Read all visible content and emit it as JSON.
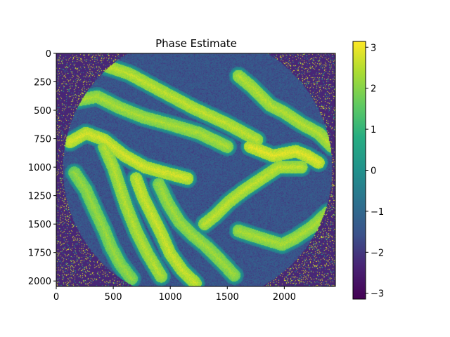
{
  "chart_data": {
    "type": "heatmap",
    "title": "Phase Estimate",
    "xlabel": "",
    "ylabel": "",
    "xlim": [
      0,
      2448
    ],
    "ylim": [
      2048,
      0
    ],
    "x_ticks": [
      0,
      500,
      1000,
      1500,
      2000
    ],
    "y_ticks": [
      0,
      250,
      500,
      750,
      1000,
      1250,
      1500,
      1750,
      2000
    ],
    "colorbar": {
      "colormap": "viridis",
      "range": [
        -3.14159,
        3.14159
      ],
      "ticks": [
        3,
        2,
        1,
        0,
        -1,
        -2,
        -3
      ],
      "tick_labels": [
        "3",
        "2",
        "1",
        "0",
        "−1",
        "−2",
        "−3"
      ]
    },
    "aperture": {
      "shape": "circle",
      "center": [
        1240,
        1010
      ],
      "radius": 1180
    },
    "fringes": [
      {
        "x": [
          180,
          400,
          640,
          900,
          1200,
          1500,
          1760
        ],
        "y": [
          120,
          100,
          180,
          320,
          480,
          620,
          760
        ],
        "value": 2.6
      },
      {
        "x": [
          140,
          360,
          560,
          760,
          980,
          1250,
          1500
        ],
        "y": [
          420,
          380,
          480,
          560,
          620,
          700,
          820
        ],
        "value": 2.4
      },
      {
        "x": [
          120,
          260,
          420,
          600,
          780,
          960,
          1150
        ],
        "y": [
          780,
          700,
          760,
          900,
          1000,
          1050,
          1100
        ],
        "value": 2.8
      },
      {
        "x": [
          160,
          260,
          340,
          420,
          480,
          560,
          660
        ],
        "y": [
          1050,
          1200,
          1380,
          1550,
          1700,
          1850,
          1980
        ],
        "value": 2.2
      },
      {
        "x": [
          420,
          500,
          560,
          620,
          700,
          800,
          920
        ],
        "y": [
          820,
          1000,
          1180,
          1360,
          1560,
          1760,
          1960
        ],
        "value": 2.5
      },
      {
        "x": [
          700,
          760,
          840,
          920,
          1000,
          1100,
          1220
        ],
        "y": [
          1100,
          1260,
          1420,
          1580,
          1760,
          1900,
          2020
        ],
        "value": 2.7
      },
      {
        "x": [
          900,
          980,
          1080,
          1200,
          1320,
          1440,
          1560
        ],
        "y": [
          1150,
          1320,
          1480,
          1600,
          1700,
          1820,
          1950
        ],
        "value": 2.3
      },
      {
        "x": [
          1300,
          1400,
          1520,
          1650,
          1800,
          1950,
          2150
        ],
        "y": [
          1500,
          1420,
          1300,
          1200,
          1100,
          1000,
          1000
        ],
        "value": 2.6
      },
      {
        "x": [
          1600,
          1720,
          1850,
          1980,
          2100,
          2250,
          2380
        ],
        "y": [
          1560,
          1600,
          1640,
          1680,
          1620,
          1520,
          1400
        ],
        "value": 2.4
      },
      {
        "x": [
          1600,
          1720,
          1880,
          2000,
          2150,
          2300,
          2420
        ],
        "y": [
          200,
          300,
          460,
          520,
          620,
          700,
          820
        ],
        "value": 2.5
      },
      {
        "x": [
          1700,
          1800,
          1900,
          2000,
          2100,
          2200,
          2300
        ],
        "y": [
          820,
          860,
          900,
          880,
          860,
          900,
          960
        ],
        "value": 2.9
      }
    ]
  }
}
